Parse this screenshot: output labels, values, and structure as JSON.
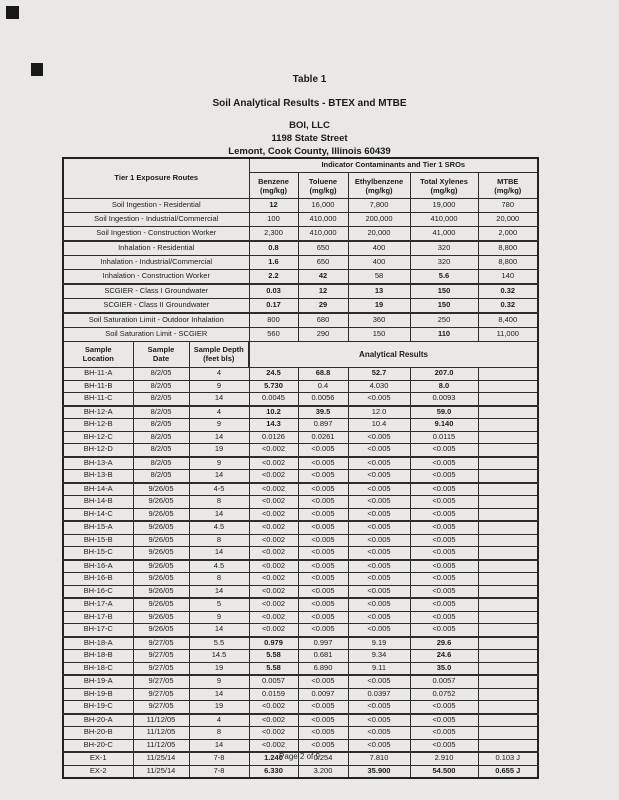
{
  "page": {
    "title": "Table 1",
    "subtitle": "Soil Analytical Results - BTEX and MTBE",
    "company": "BOI, LLC",
    "address": "1198 State Street",
    "city_line": "Lemont, Cook County, Illinois 60439",
    "footer": "Page 2 of 9"
  },
  "tier_table": {
    "corner_label": "Tier 1 Exposure Routes",
    "span_header": "Indicator Contaminants and Tier 1 SROs",
    "columns": [
      {
        "name": "Benzene",
        "unit": "(mg/kg)"
      },
      {
        "name": "Toluene",
        "unit": "(mg/kg)"
      },
      {
        "name": "Ethylbenzene",
        "unit": "(mg/kg)"
      },
      {
        "name": "Total Xylenes",
        "unit": "(mg/kg)"
      },
      {
        "name": "MTBE",
        "unit": "(mg/kg)"
      }
    ],
    "rows": [
      {
        "label": "Soil Ingestion - Residential",
        "values": [
          "12",
          "16,000",
          "7,800",
          "19,000",
          "780"
        ],
        "bold": [
          1,
          0,
          0,
          0,
          0
        ],
        "group_end": false
      },
      {
        "label": "Soil Ingestion - Industrial/Commercial",
        "values": [
          "100",
          "410,000",
          "200,000",
          "410,000",
          "20,000"
        ],
        "bold": [
          0,
          0,
          0,
          0,
          0
        ],
        "group_end": false
      },
      {
        "label": "Soil Ingestion - Construction Worker",
        "values": [
          "2,300",
          "410,000",
          "20,000",
          "41,000",
          "2,000"
        ],
        "bold": [
          0,
          0,
          0,
          0,
          0
        ],
        "group_end": true
      },
      {
        "label": "Inhalation - Residential",
        "values": [
          "0.8",
          "650",
          "400",
          "320",
          "8,800"
        ],
        "bold": [
          1,
          0,
          0,
          0,
          0
        ],
        "group_end": false
      },
      {
        "label": "Inhalation - Industrial/Commercial",
        "values": [
          "1.6",
          "650",
          "400",
          "320",
          "8,800"
        ],
        "bold": [
          1,
          0,
          0,
          0,
          0
        ],
        "group_end": false
      },
      {
        "label": "Inhalation - Construction Worker",
        "values": [
          "2.2",
          "42",
          "58",
          "5.6",
          "140"
        ],
        "bold": [
          1,
          1,
          0,
          1,
          0
        ],
        "group_end": true
      },
      {
        "label": "SCGIER - Class I Groundwater",
        "values": [
          "0.03",
          "12",
          "13",
          "150",
          "0.32"
        ],
        "bold": [
          1,
          1,
          1,
          1,
          1
        ],
        "group_end": false
      },
      {
        "label": "SCGIER - Class II Groundwater",
        "values": [
          "0.17",
          "29",
          "19",
          "150",
          "0.32"
        ],
        "bold": [
          1,
          1,
          1,
          1,
          1
        ],
        "group_end": true
      },
      {
        "label": "Soil Saturation Limit - Outdoor Inhalation",
        "values": [
          "800",
          "680",
          "360",
          "250",
          "8,400"
        ],
        "bold": [
          0,
          0,
          0,
          0,
          0
        ],
        "group_end": false
      },
      {
        "label": "Soil Saturation Limit - SCGIER",
        "values": [
          "560",
          "290",
          "150",
          "110",
          "11,000"
        ],
        "bold": [
          0,
          0,
          0,
          1,
          0
        ],
        "group_end": false
      }
    ]
  },
  "sample_table": {
    "headers": [
      {
        "line1": "Sample",
        "line2": "Location"
      },
      {
        "line1": "Sample",
        "line2": "Date"
      },
      {
        "line1": "Sample Depth",
        "line2": "(feet bls)"
      }
    ],
    "span_header": "Analytical Results",
    "rows": [
      {
        "location": "BH-11-A",
        "date": "8/2/05",
        "depth": "4",
        "values": [
          "24.5",
          "68.8",
          "52.7",
          "207.0",
          ""
        ],
        "bold": [
          1,
          1,
          1,
          1,
          0
        ],
        "group_end": false
      },
      {
        "location": "BH-11-B",
        "date": "8/2/05",
        "depth": "9",
        "values": [
          "5.730",
          "0.4",
          "4.030",
          "8.0",
          ""
        ],
        "bold": [
          1,
          0,
          0,
          1,
          0
        ],
        "group_end": false
      },
      {
        "location": "BH-11-C",
        "date": "8/2/05",
        "depth": "14",
        "values": [
          "0.0045",
          "0.0056",
          "<0.005",
          "0.0093",
          ""
        ],
        "bold": [
          0,
          0,
          0,
          0,
          0
        ],
        "group_end": true
      },
      {
        "location": "BH-12-A",
        "date": "8/2/05",
        "depth": "4",
        "values": [
          "10.2",
          "39.5",
          "12.0",
          "59.0",
          ""
        ],
        "bold": [
          1,
          1,
          0,
          1,
          0
        ],
        "group_end": false
      },
      {
        "location": "BH-12-B",
        "date": "8/2/05",
        "depth": "9",
        "values": [
          "14.3",
          "0.897",
          "10.4",
          "9.140",
          ""
        ],
        "bold": [
          1,
          0,
          0,
          1,
          0
        ],
        "group_end": false
      },
      {
        "location": "BH-12-C",
        "date": "8/2/05",
        "depth": "14",
        "values": [
          "0.0126",
          "0.0261",
          "<0.005",
          "0.0115",
          ""
        ],
        "bold": [
          0,
          0,
          0,
          0,
          0
        ],
        "group_end": false
      },
      {
        "location": "BH-12-D",
        "date": "8/2/05",
        "depth": "19",
        "values": [
          "<0.002",
          "<0.005",
          "<0.005",
          "<0.005",
          ""
        ],
        "bold": [
          0,
          0,
          0,
          0,
          0
        ],
        "group_end": true
      },
      {
        "location": "BH-13-A",
        "date": "8/2/05",
        "depth": "9",
        "values": [
          "<0.002",
          "<0.005",
          "<0.005",
          "<0.005",
          ""
        ],
        "bold": [
          0,
          0,
          0,
          0,
          0
        ],
        "group_end": false
      },
      {
        "location": "BH-13-B",
        "date": "8/2/05",
        "depth": "14",
        "values": [
          "<0.002",
          "<0.005",
          "<0.005",
          "<0.005",
          ""
        ],
        "bold": [
          0,
          0,
          0,
          0,
          0
        ],
        "group_end": true
      },
      {
        "location": "BH-14-A",
        "date": "9/26/05",
        "depth": "4-5",
        "values": [
          "<0.002",
          "<0.005",
          "<0.005",
          "<0.005",
          ""
        ],
        "bold": [
          0,
          0,
          0,
          0,
          0
        ],
        "group_end": false
      },
      {
        "location": "BH-14-B",
        "date": "9/26/05",
        "depth": "8",
        "values": [
          "<0.002",
          "<0.005",
          "<0.005",
          "<0.005",
          ""
        ],
        "bold": [
          0,
          0,
          0,
          0,
          0
        ],
        "group_end": false
      },
      {
        "location": "BH-14-C",
        "date": "9/26/05",
        "depth": "14",
        "values": [
          "<0.002",
          "<0.005",
          "<0.005",
          "<0.005",
          ""
        ],
        "bold": [
          0,
          0,
          0,
          0,
          0
        ],
        "group_end": true
      },
      {
        "location": "BH-15-A",
        "date": "9/26/05",
        "depth": "4.5",
        "values": [
          "<0.002",
          "<0.005",
          "<0.005",
          "<0.005",
          ""
        ],
        "bold": [
          0,
          0,
          0,
          0,
          0
        ],
        "group_end": false
      },
      {
        "location": "BH-15-B",
        "date": "9/26/05",
        "depth": "8",
        "values": [
          "<0.002",
          "<0.005",
          "<0.005",
          "<0.005",
          ""
        ],
        "bold": [
          0,
          0,
          0,
          0,
          0
        ],
        "group_end": false
      },
      {
        "location": "BH-15-C",
        "date": "9/26/05",
        "depth": "14",
        "values": [
          "<0.002",
          "<0.005",
          "<0.005",
          "<0.005",
          ""
        ],
        "bold": [
          0,
          0,
          0,
          0,
          0
        ],
        "group_end": true
      },
      {
        "location": "BH-16-A",
        "date": "9/26/05",
        "depth": "4.5",
        "values": [
          "<0.002",
          "<0.005",
          "<0.005",
          "<0.005",
          ""
        ],
        "bold": [
          0,
          0,
          0,
          0,
          0
        ],
        "group_end": false
      },
      {
        "location": "BH-16-B",
        "date": "9/26/05",
        "depth": "8",
        "values": [
          "<0.002",
          "<0.005",
          "<0.005",
          "<0.005",
          ""
        ],
        "bold": [
          0,
          0,
          0,
          0,
          0
        ],
        "group_end": false
      },
      {
        "location": "BH-16-C",
        "date": "9/26/05",
        "depth": "14",
        "values": [
          "<0.002",
          "<0.005",
          "<0.005",
          "<0.005",
          ""
        ],
        "bold": [
          0,
          0,
          0,
          0,
          0
        ],
        "group_end": true
      },
      {
        "location": "BH-17-A",
        "date": "9/26/05",
        "depth": "5",
        "values": [
          "<0.002",
          "<0.005",
          "<0.005",
          "<0.005",
          ""
        ],
        "bold": [
          0,
          0,
          0,
          0,
          0
        ],
        "group_end": false
      },
      {
        "location": "BH-17-B",
        "date": "9/26/05",
        "depth": "9",
        "values": [
          "<0.002",
          "<0.005",
          "<0.005",
          "<0.005",
          ""
        ],
        "bold": [
          0,
          0,
          0,
          0,
          0
        ],
        "group_end": false
      },
      {
        "location": "BH-17-C",
        "date": "9/26/05",
        "depth": "14",
        "values": [
          "<0.002",
          "<0.005",
          "<0.005",
          "<0.005",
          ""
        ],
        "bold": [
          0,
          0,
          0,
          0,
          0
        ],
        "group_end": true
      },
      {
        "location": "BH-18-A",
        "date": "9/27/05",
        "depth": "5.5",
        "values": [
          "0.979",
          "0.997",
          "9.19",
          "29.6",
          ""
        ],
        "bold": [
          1,
          0,
          0,
          1,
          0
        ],
        "group_end": false
      },
      {
        "location": "BH-18-B",
        "date": "9/27/05",
        "depth": "14.5",
        "values": [
          "5.58",
          "0.681",
          "9.34",
          "24.6",
          ""
        ],
        "bold": [
          1,
          0,
          0,
          1,
          0
        ],
        "group_end": false
      },
      {
        "location": "BH-18-C",
        "date": "9/27/05",
        "depth": "19",
        "values": [
          "5.58",
          "6.890",
          "9.11",
          "35.0",
          ""
        ],
        "bold": [
          1,
          0,
          0,
          1,
          0
        ],
        "group_end": true
      },
      {
        "location": "BH-19-A",
        "date": "9/27/05",
        "depth": "9",
        "values": [
          "0.0057",
          "<0.005",
          "<0.005",
          "0.0057",
          ""
        ],
        "bold": [
          0,
          0,
          0,
          0,
          0
        ],
        "group_end": false
      },
      {
        "location": "BH-19-B",
        "date": "9/27/05",
        "depth": "14",
        "values": [
          "0.0159",
          "0.0097",
          "0.0397",
          "0.0752",
          ""
        ],
        "bold": [
          0,
          0,
          0,
          0,
          0
        ],
        "group_end": false
      },
      {
        "location": "BH-19-C",
        "date": "9/27/05",
        "depth": "19",
        "values": [
          "<0.002",
          "<0.005",
          "<0.005",
          "<0.005",
          ""
        ],
        "bold": [
          0,
          0,
          0,
          0,
          0
        ],
        "group_end": true
      },
      {
        "location": "BH-20-A",
        "date": "11/12/05",
        "depth": "4",
        "values": [
          "<0.002",
          "<0.005",
          "<0.005",
          "<0.005",
          ""
        ],
        "bold": [
          0,
          0,
          0,
          0,
          0
        ],
        "group_end": false
      },
      {
        "location": "BH-20-B",
        "date": "11/12/05",
        "depth": "8",
        "values": [
          "<0.002",
          "<0.005",
          "<0.005",
          "<0.005",
          ""
        ],
        "bold": [
          0,
          0,
          0,
          0,
          0
        ],
        "group_end": false
      },
      {
        "location": "BH-20-C",
        "date": "11/12/05",
        "depth": "14",
        "values": [
          "<0.002",
          "<0.005",
          "<0.005",
          "<0.005",
          ""
        ],
        "bold": [
          0,
          0,
          0,
          0,
          0
        ],
        "group_end": true
      },
      {
        "location": "EX-1",
        "date": "11/25/14",
        "depth": "7-8",
        "values": [
          "1.240",
          "0.254",
          "7.810",
          "2.910",
          "0.103 J"
        ],
        "bold": [
          1,
          0,
          0,
          0,
          0
        ],
        "group_end": false
      },
      {
        "location": "EX-2",
        "date": "11/25/14",
        "depth": "7-8",
        "values": [
          "6.330",
          "3.200",
          "35.900",
          "54.500",
          "0.655 J"
        ],
        "bold": [
          1,
          0,
          1,
          1,
          1
        ],
        "group_end": false
      }
    ]
  }
}
